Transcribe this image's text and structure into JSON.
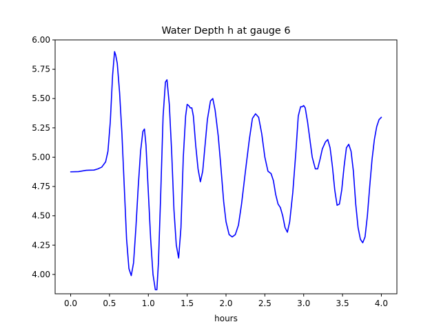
{
  "chart_data": {
    "type": "line",
    "title": "Water Depth h at gauge 6",
    "xlabel": "hours",
    "ylabel": "",
    "xlim": [
      -0.2,
      4.2
    ],
    "ylim": [
      3.835,
      6.0
    ],
    "xticks": [
      0.0,
      0.5,
      1.0,
      1.5,
      2.0,
      2.5,
      3.0,
      3.5,
      4.0
    ],
    "xtick_labels": [
      "0.0",
      "0.5",
      "1.0",
      "1.5",
      "2.0",
      "2.5",
      "3.0",
      "3.5",
      "4.0"
    ],
    "yticks": [
      4.0,
      4.25,
      4.5,
      4.75,
      5.0,
      5.25,
      5.5,
      5.75,
      6.0
    ],
    "ytick_labels": [
      "4.00",
      "4.25",
      "4.50",
      "4.75",
      "5.00",
      "5.25",
      "5.50",
      "5.75",
      "6.00"
    ],
    "grid": false,
    "legend": "none",
    "series": [
      {
        "color": "#0000ff",
        "points": [
          [
            0.0,
            4.875
          ],
          [
            0.1,
            4.877
          ],
          [
            0.2,
            4.888
          ],
          [
            0.3,
            4.89
          ],
          [
            0.35,
            4.9
          ],
          [
            0.4,
            4.915
          ],
          [
            0.45,
            4.96
          ],
          [
            0.48,
            5.05
          ],
          [
            0.51,
            5.3
          ],
          [
            0.54,
            5.7
          ],
          [
            0.565,
            5.9
          ],
          [
            0.58,
            5.87
          ],
          [
            0.6,
            5.8
          ],
          [
            0.63,
            5.55
          ],
          [
            0.66,
            5.2
          ],
          [
            0.69,
            4.75
          ],
          [
            0.72,
            4.3
          ],
          [
            0.75,
            4.05
          ],
          [
            0.78,
            3.99
          ],
          [
            0.81,
            4.1
          ],
          [
            0.84,
            4.4
          ],
          [
            0.87,
            4.75
          ],
          [
            0.9,
            5.05
          ],
          [
            0.93,
            5.22
          ],
          [
            0.95,
            5.24
          ],
          [
            0.97,
            5.1
          ],
          [
            1.0,
            4.7
          ],
          [
            1.03,
            4.3
          ],
          [
            1.06,
            4.0
          ],
          [
            1.09,
            3.87
          ],
          [
            1.11,
            3.87
          ],
          [
            1.13,
            4.1
          ],
          [
            1.16,
            4.7
          ],
          [
            1.19,
            5.35
          ],
          [
            1.22,
            5.64
          ],
          [
            1.24,
            5.66
          ],
          [
            1.27,
            5.45
          ],
          [
            1.3,
            5.05
          ],
          [
            1.33,
            4.55
          ],
          [
            1.36,
            4.25
          ],
          [
            1.39,
            4.14
          ],
          [
            1.42,
            4.4
          ],
          [
            1.45,
            5.0
          ],
          [
            1.48,
            5.35
          ],
          [
            1.5,
            5.45
          ],
          [
            1.52,
            5.44
          ],
          [
            1.54,
            5.42
          ],
          [
            1.56,
            5.42
          ],
          [
            1.58,
            5.35
          ],
          [
            1.61,
            5.1
          ],
          [
            1.64,
            4.9
          ],
          [
            1.67,
            4.79
          ],
          [
            1.7,
            4.88
          ],
          [
            1.73,
            5.1
          ],
          [
            1.76,
            5.32
          ],
          [
            1.8,
            5.48
          ],
          [
            1.83,
            5.5
          ],
          [
            1.86,
            5.4
          ],
          [
            1.9,
            5.18
          ],
          [
            1.93,
            4.95
          ],
          [
            1.97,
            4.62
          ],
          [
            2.0,
            4.45
          ],
          [
            2.04,
            4.34
          ],
          [
            2.08,
            4.32
          ],
          [
            2.12,
            4.34
          ],
          [
            2.16,
            4.42
          ],
          [
            2.2,
            4.6
          ],
          [
            2.25,
            4.88
          ],
          [
            2.3,
            5.15
          ],
          [
            2.34,
            5.33
          ],
          [
            2.38,
            5.37
          ],
          [
            2.42,
            5.34
          ],
          [
            2.46,
            5.2
          ],
          [
            2.5,
            5.0
          ],
          [
            2.54,
            4.88
          ],
          [
            2.58,
            4.86
          ],
          [
            2.61,
            4.8
          ],
          [
            2.64,
            4.68
          ],
          [
            2.67,
            4.6
          ],
          [
            2.7,
            4.57
          ],
          [
            2.73,
            4.5
          ],
          [
            2.76,
            4.4
          ],
          [
            2.79,
            4.36
          ],
          [
            2.82,
            4.45
          ],
          [
            2.86,
            4.7
          ],
          [
            2.9,
            5.05
          ],
          [
            2.93,
            5.35
          ],
          [
            2.96,
            5.43
          ],
          [
            2.98,
            5.43
          ],
          [
            3.0,
            5.44
          ],
          [
            3.02,
            5.42
          ],
          [
            3.05,
            5.3
          ],
          [
            3.08,
            5.15
          ],
          [
            3.11,
            5.0
          ],
          [
            3.15,
            4.9
          ],
          [
            3.18,
            4.9
          ],
          [
            3.21,
            4.98
          ],
          [
            3.24,
            5.07
          ],
          [
            3.28,
            5.13
          ],
          [
            3.31,
            5.15
          ],
          [
            3.34,
            5.08
          ],
          [
            3.37,
            4.92
          ],
          [
            3.4,
            4.72
          ],
          [
            3.43,
            4.59
          ],
          [
            3.46,
            4.6
          ],
          [
            3.49,
            4.72
          ],
          [
            3.52,
            4.92
          ],
          [
            3.55,
            5.08
          ],
          [
            3.58,
            5.11
          ],
          [
            3.61,
            5.05
          ],
          [
            3.64,
            4.88
          ],
          [
            3.67,
            4.6
          ],
          [
            3.7,
            4.4
          ],
          [
            3.73,
            4.3
          ],
          [
            3.76,
            4.27
          ],
          [
            3.79,
            4.32
          ],
          [
            3.82,
            4.5
          ],
          [
            3.85,
            4.75
          ],
          [
            3.88,
            4.98
          ],
          [
            3.91,
            5.15
          ],
          [
            3.94,
            5.26
          ],
          [
            3.97,
            5.32
          ],
          [
            4.0,
            5.34
          ]
        ]
      }
    ]
  }
}
